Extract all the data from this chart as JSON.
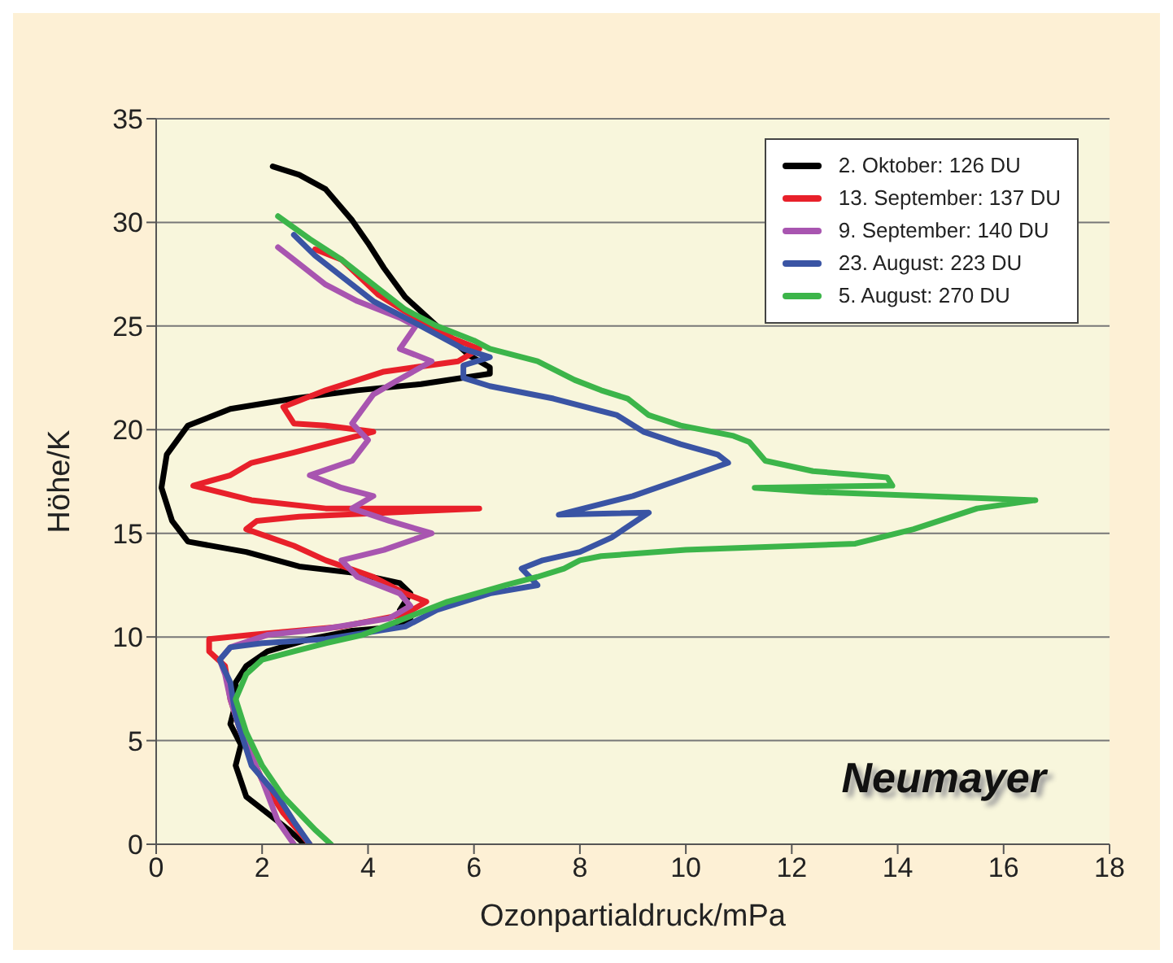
{
  "chart_data": {
    "type": "line",
    "xlabel": "Ozonpartialdruck/mPa",
    "ylabel": "Höhe/K",
    "xlim": [
      0,
      18
    ],
    "xticks": [
      0,
      2,
      4,
      6,
      8,
      10,
      12,
      14,
      16,
      18
    ],
    "ylim": [
      0,
      35
    ],
    "yticks": [
      0,
      5,
      10,
      15,
      20,
      25,
      30,
      35
    ],
    "grid": "y",
    "legend": "top right",
    "marker": "none",
    "line_style": "solid",
    "annotations": [
      "Neumayer"
    ],
    "series": [
      {
        "name": "2. Oktober: 126 DU",
        "color": "#000000",
        "x": [
          2.8,
          2.5,
          2.1,
          1.7,
          1.5,
          1.6,
          1.4,
          1.5,
          1.5,
          1.7,
          2.1,
          2.9,
          3.7,
          4.6,
          4.8,
          4.6,
          4.8,
          4.6,
          3.7,
          2.7,
          1.7,
          0.6,
          0.3,
          0.1,
          0.2,
          0.6,
          1.4,
          2.6,
          3.8,
          5.0,
          6.3,
          6.3,
          5.9,
          5.3,
          4.7,
          4.3,
          4.0,
          3.7,
          3.2,
          2.7,
          2.2
        ],
        "values": [
          0,
          0.7,
          1.5,
          2.3,
          3.8,
          4.8,
          5.8,
          6.8,
          7.8,
          8.6,
          9.3,
          9.9,
          10.3,
          10.5,
          10.9,
          11.3,
          12.1,
          12.6,
          13.1,
          13.4,
          14.1,
          14.6,
          15.6,
          17.2,
          18.8,
          20.2,
          21.0,
          21.5,
          21.9,
          22.2,
          22.7,
          23.0,
          23.6,
          25.0,
          26.4,
          27.8,
          29.0,
          30.1,
          31.6,
          32.3,
          32.7
        ]
      },
      {
        "name": "13. September: 137 DU",
        "color": "#e8202a",
        "x": [
          2.9,
          2.4,
          2.0,
          1.6,
          1.4,
          1.3,
          1.0,
          1.0,
          1.8,
          3.5,
          4.7,
          5.1,
          4.7,
          4.1,
          3.2,
          2.6,
          1.7,
          1.9,
          2.7,
          6.1,
          3.2,
          1.8,
          0.7,
          1.4,
          1.8,
          2.6,
          4.1,
          3.2,
          2.6,
          2.4,
          3.2,
          4.3,
          5.7,
          6.1,
          5.6,
          4.7,
          4.2,
          3.5,
          3.0
        ],
        "values": [
          0,
          1.5,
          3.1,
          5.4,
          7.0,
          8.6,
          9.3,
          9.9,
          10.1,
          10.5,
          11.1,
          11.7,
          12.1,
          12.9,
          13.7,
          14.4,
          15.2,
          15.6,
          15.8,
          16.2,
          16.2,
          16.6,
          17.3,
          17.8,
          18.4,
          18.9,
          19.9,
          20.2,
          20.3,
          21.1,
          21.9,
          22.8,
          23.3,
          23.9,
          24.4,
          25.7,
          26.5,
          28.2,
          28.7
        ]
      },
      {
        "name": "9. September: 140 DU",
        "color": "#a855b0",
        "x": [
          2.6,
          2.3,
          2.0,
          1.6,
          1.4,
          1.3,
          1.2,
          1.4,
          2.1,
          3.2,
          4.4,
          4.8,
          4.6,
          3.8,
          3.5,
          4.3,
          5.2,
          4.4,
          3.7,
          4.1,
          3.5,
          2.9,
          3.7,
          4.0,
          3.7,
          4.1,
          4.5,
          5.2,
          4.6,
          4.9,
          4.6,
          3.8,
          3.2,
          2.6,
          2.3
        ],
        "values": [
          0,
          1.1,
          3.1,
          5.4,
          7.0,
          8.2,
          8.9,
          9.5,
          10.1,
          10.4,
          10.9,
          11.5,
          12.1,
          12.9,
          13.7,
          14.2,
          15.0,
          15.6,
          16.2,
          16.8,
          17.2,
          17.8,
          18.5,
          19.5,
          20.3,
          21.7,
          22.3,
          23.3,
          23.9,
          25.0,
          25.4,
          26.2,
          27.0,
          28.2,
          28.8
        ]
      },
      {
        "name": "23. August: 223 DU",
        "color": "#3a54a4",
        "x": [
          2.9,
          2.6,
          2.3,
          1.8,
          1.5,
          1.4,
          1.2,
          1.4,
          2.0,
          3.2,
          4.7,
          5.3,
          6.3,
          7.2,
          6.9,
          7.3,
          8.0,
          8.6,
          9.3,
          7.6,
          9.0,
          9.9,
          10.8,
          10.6,
          9.9,
          9.2,
          8.7,
          7.5,
          6.3,
          5.8,
          5.8,
          6.3,
          5.8,
          5.0,
          4.1,
          3.5,
          3.0,
          2.6
        ],
        "values": [
          0,
          1.1,
          2.3,
          3.8,
          6.2,
          7.8,
          8.9,
          9.5,
          9.7,
          9.9,
          10.5,
          11.3,
          12.1,
          12.5,
          13.3,
          13.7,
          14.1,
          14.8,
          16.0,
          15.9,
          16.8,
          17.6,
          18.4,
          18.8,
          19.3,
          19.9,
          20.7,
          21.5,
          22.1,
          22.5,
          23.1,
          23.5,
          23.9,
          25.0,
          26.2,
          27.4,
          28.4,
          29.4
        ]
      },
      {
        "name": "5. August: 270 DU",
        "color": "#3cb54a",
        "x": [
          3.3,
          3.0,
          2.4,
          2.0,
          1.7,
          1.5,
          1.7,
          2.0,
          2.6,
          3.2,
          3.9,
          4.7,
          5.5,
          6.6,
          7.2,
          7.7,
          8.0,
          8.4,
          10.0,
          13.2,
          14.3,
          15.5,
          16.6,
          12.4,
          11.3,
          13.9,
          13.8,
          12.4,
          11.5,
          11.2,
          10.9,
          9.9,
          9.3,
          8.9,
          8.4,
          7.9,
          7.2,
          6.3,
          6.0,
          5.3,
          4.7,
          4.1,
          3.5,
          2.9,
          2.3
        ],
        "values": [
          0,
          0.7,
          2.3,
          3.8,
          5.4,
          7.0,
          8.2,
          8.9,
          9.3,
          9.7,
          10.1,
          10.9,
          11.7,
          12.5,
          12.9,
          13.3,
          13.7,
          13.9,
          14.2,
          14.5,
          15.2,
          16.2,
          16.6,
          17.0,
          17.2,
          17.3,
          17.7,
          18.0,
          18.5,
          19.4,
          19.7,
          20.2,
          20.7,
          21.5,
          21.9,
          22.4,
          23.3,
          23.9,
          24.3,
          25.0,
          25.8,
          27.0,
          28.2,
          29.2,
          30.3
        ]
      }
    ]
  }
}
